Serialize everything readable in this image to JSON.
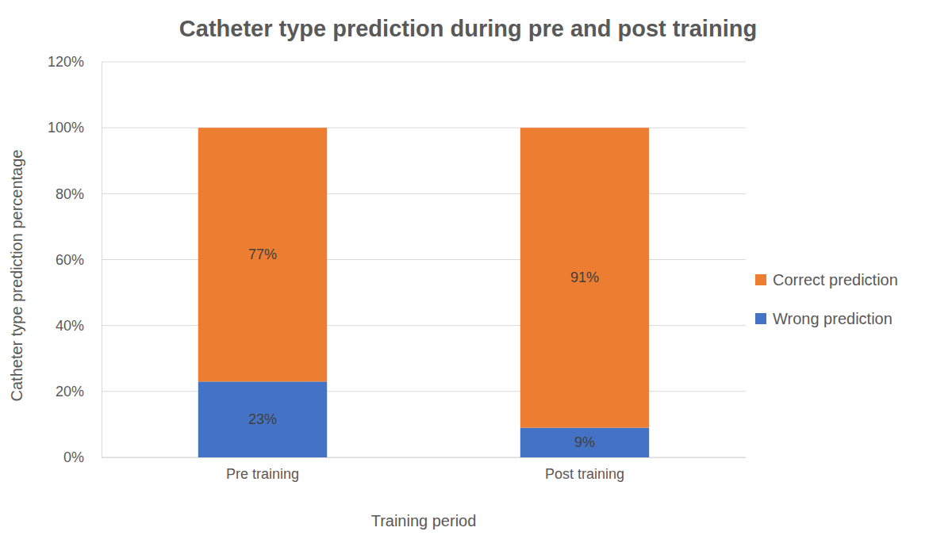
{
  "chart_data": {
    "type": "bar",
    "stacked": true,
    "title": "Catheter type prediction during pre and post training",
    "x_label": "Training period",
    "y_label": "Catheter type prediction percentage",
    "categories": [
      "Pre training",
      "Post training"
    ],
    "series": [
      {
        "name": "Wrong prediction",
        "color": "#4472c4",
        "values": [
          23,
          9
        ],
        "value_labels": [
          "23%",
          "9%"
        ]
      },
      {
        "name": "Correct prediction",
        "color": "#ed7d31",
        "values": [
          77,
          91
        ],
        "value_labels": [
          "77%",
          "91%"
        ]
      }
    ],
    "ylim": [
      0,
      120
    ],
    "yticks": [
      {
        "value": 0,
        "label": "0%"
      },
      {
        "value": 20,
        "label": "20%"
      },
      {
        "value": 40,
        "label": "40%"
      },
      {
        "value": 60,
        "label": "60%"
      },
      {
        "value": 80,
        "label": "80%"
      },
      {
        "value": 100,
        "label": "100%"
      },
      {
        "value": 120,
        "label": "120%"
      }
    ],
    "grid": true,
    "legend": "right",
    "data_labels": true
  }
}
